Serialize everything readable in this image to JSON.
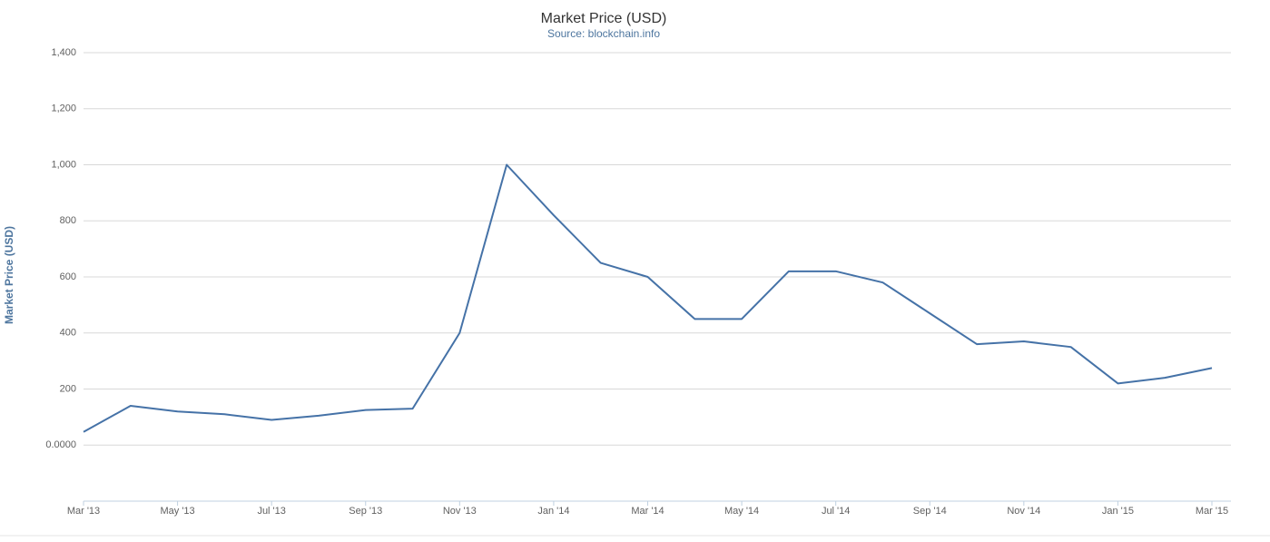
{
  "chart_data": {
    "type": "line",
    "title": "Market Price (USD)",
    "subtitle": "Source: blockchain.info",
    "y_label": "Market Price (USD)",
    "x": [
      "2013-03",
      "2013-04",
      "2013-05",
      "2013-06",
      "2013-07",
      "2013-08",
      "2013-09",
      "2013-10",
      "2013-11",
      "2013-12",
      "2014-01",
      "2014-02",
      "2014-03",
      "2014-04",
      "2014-05",
      "2014-06",
      "2014-07",
      "2014-08",
      "2014-09",
      "2014-10",
      "2014-11",
      "2014-12",
      "2015-01",
      "2015-02",
      "2015-03"
    ],
    "series": [
      {
        "name": "Market Price (USD)",
        "color": "#4572a7",
        "values": [
          47,
          140,
          120,
          110,
          90,
          105,
          125,
          130,
          400,
          1000,
          820,
          650,
          600,
          450,
          450,
          620,
          620,
          580,
          470,
          360,
          370,
          350,
          220,
          240,
          275
        ]
      }
    ],
    "xlim": [
      "2013-03",
      "2015-03"
    ],
    "xticks": [
      {
        "value": "2013-03",
        "label": "Mar '13"
      },
      {
        "value": "2013-05",
        "label": "May '13"
      },
      {
        "value": "2013-07",
        "label": "Jul '13"
      },
      {
        "value": "2013-09",
        "label": "Sep '13"
      },
      {
        "value": "2013-11",
        "label": "Nov '13"
      },
      {
        "value": "2014-01",
        "label": "Jan '14"
      },
      {
        "value": "2014-03",
        "label": "Mar '14"
      },
      {
        "value": "2014-05",
        "label": "May '14"
      },
      {
        "value": "2014-07",
        "label": "Jul '14"
      },
      {
        "value": "2014-09",
        "label": "Sep '14"
      },
      {
        "value": "2014-11",
        "label": "Nov '14"
      },
      {
        "value": "2015-01",
        "label": "Jan '15"
      },
      {
        "value": "2015-03",
        "label": "Mar '15"
      }
    ],
    "ylim": [
      -200,
      1400
    ],
    "yticks": [
      {
        "value": 0,
        "label": "0.0000"
      },
      200,
      400,
      600,
      800,
      {
        "value": 1000,
        "label": "1,000"
      },
      {
        "value": 1200,
        "label": "1,200"
      },
      {
        "value": 1400,
        "label": "1,400"
      }
    ],
    "grid": true
  }
}
